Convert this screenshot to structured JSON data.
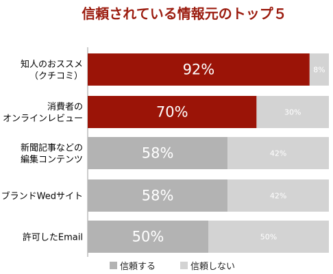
{
  "chart_data": {
    "type": "bar",
    "orientation": "horizontal",
    "stacked": true,
    "title": "信頼されている情報元のトップ５",
    "categories": [
      [
        "知人のおススメ",
        "（クチコミ）"
      ],
      [
        "消費者の",
        "オンラインレビュー"
      ],
      [
        "新聞記事などの",
        "編集コンテンツ"
      ],
      [
        "ブランドWedサイト"
      ],
      [
        "許可したEmail"
      ]
    ],
    "series": [
      {
        "name": "信頼する",
        "values": [
          92,
          70,
          58,
          58,
          50
        ],
        "labels": [
          "92%",
          "70%",
          "58%",
          "58%",
          "50%"
        ]
      },
      {
        "name": "信頼しない",
        "values": [
          8,
          30,
          42,
          42,
          50
        ],
        "labels": [
          "8%",
          "30%",
          "42%",
          "42%",
          "50%"
        ]
      }
    ],
    "xlim": [
      0,
      100
    ],
    "grid": false,
    "legend_position": "bottom",
    "colors": {
      "title": "#9b1b0e",
      "trust_highlight": "#9b1407",
      "trust": "#b3b3b3",
      "distrust": "#d3d3d3",
      "axis": "#999999"
    },
    "highlight_count": 2
  }
}
